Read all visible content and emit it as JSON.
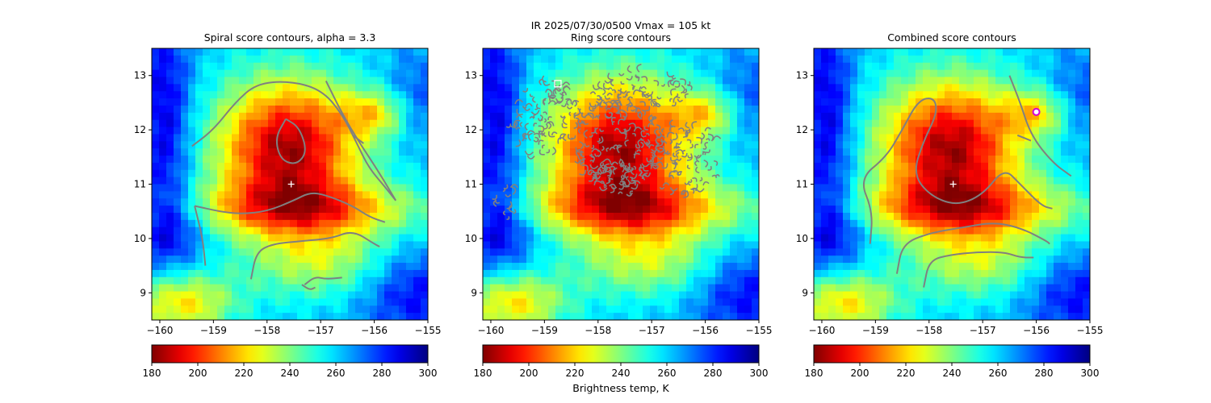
{
  "suptitle": "IR  2025/07/30/0500    Vmax = 105 kt",
  "colorbar_label": "Brightness temp, K",
  "chart_data": [
    {
      "type": "heatmap",
      "title": "Spiral score contours, alpha =  3.3",
      "xlim": [
        -160.15,
        -155.0
      ],
      "ylim": [
        8.5,
        13.5
      ],
      "x_ticks": [
        -160,
        -159,
        -158,
        -157,
        -156,
        -155
      ],
      "x_tick_labels": [
        "−160",
        "−159",
        "−158",
        "−157",
        "−156",
        "−155"
      ],
      "y_ticks": [
        9,
        10,
        11,
        12,
        13
      ],
      "y_tick_labels": [
        "9",
        "10",
        "11",
        "12",
        "13"
      ],
      "center": {
        "lon": -157.55,
        "lat": 11.0
      },
      "contour_color": "#808080",
      "contours": [
        [
          [
            -159.4,
            11.7
          ],
          [
            -159.0,
            12.0
          ],
          [
            -158.6,
            12.5
          ],
          [
            -158.2,
            12.85
          ],
          [
            -157.6,
            12.9
          ],
          [
            -157.0,
            12.75
          ],
          [
            -156.6,
            12.3
          ],
          [
            -156.3,
            11.7
          ],
          [
            -156.1,
            11.3
          ],
          [
            -155.8,
            10.95
          ],
          [
            -155.6,
            10.7
          ]
        ],
        [
          [
            -157.65,
            12.2
          ],
          [
            -157.4,
            12.05
          ],
          [
            -157.25,
            11.6
          ],
          [
            -157.45,
            11.35
          ],
          [
            -157.75,
            11.45
          ],
          [
            -157.85,
            11.85
          ],
          [
            -157.65,
            12.2
          ]
        ],
        [
          [
            -156.9,
            12.9
          ],
          [
            -156.6,
            12.3
          ],
          [
            -156.3,
            11.8
          ],
          [
            -155.9,
            11.2
          ],
          [
            -155.6,
            10.7
          ]
        ],
        [
          [
            -159.35,
            10.6
          ],
          [
            -159.2,
            10.0
          ],
          [
            -159.15,
            9.5
          ]
        ],
        [
          [
            -159.35,
            10.6
          ],
          [
            -158.9,
            10.5
          ],
          [
            -158.5,
            10.45
          ],
          [
            -158.0,
            10.5
          ],
          [
            -157.5,
            10.7
          ],
          [
            -157.2,
            10.85
          ],
          [
            -156.9,
            10.8
          ],
          [
            -156.4,
            10.6
          ],
          [
            -156.1,
            10.4
          ],
          [
            -155.8,
            10.3
          ]
        ],
        [
          [
            -158.3,
            9.25
          ],
          [
            -158.2,
            9.75
          ],
          [
            -157.9,
            9.9
          ],
          [
            -157.4,
            9.95
          ],
          [
            -156.8,
            10.0
          ],
          [
            -156.4,
            10.15
          ],
          [
            -156.0,
            9.9
          ],
          [
            -155.9,
            9.85
          ]
        ],
        [
          [
            -157.3,
            9.15
          ],
          [
            -157.1,
            9.3
          ],
          [
            -156.9,
            9.25
          ],
          [
            -156.6,
            9.28
          ]
        ],
        [
          [
            -157.35,
            9.15
          ],
          [
            -157.2,
            9.05
          ],
          [
            -157.1,
            9.1
          ]
        ],
        [
          [
            -156.4,
            11.9
          ],
          [
            -156.2,
            11.75
          ]
        ]
      ],
      "markers": [
        {
          "lon": -157.55,
          "lat": 11.0,
          "shape": "plus",
          "color": "#ffffff"
        }
      ],
      "colorbar": {
        "range": [
          180,
          300
        ],
        "ticks": [
          180,
          200,
          220,
          240,
          260,
          280,
          300
        ],
        "colormap": "jet_r"
      }
    },
    {
      "type": "heatmap",
      "title": "Ring score contours",
      "xlim": [
        -160.15,
        -155.0
      ],
      "ylim": [
        8.5,
        13.5
      ],
      "x_ticks": [
        -160,
        -159,
        -158,
        -157,
        -156,
        -155
      ],
      "x_tick_labels": [
        "−160",
        "−159",
        "−158",
        "−157",
        "−156",
        "−155"
      ],
      "y_ticks": [
        9,
        10,
        11,
        12,
        13
      ],
      "y_tick_labels": [
        "9",
        "10",
        "11",
        "12",
        "13"
      ],
      "center": {
        "lon": -157.55,
        "lat": 11.0
      },
      "contour_color": "#808080",
      "ring_regions": [
        {
          "lon": -159.0,
          "lat": 12.2,
          "rx": 0.65,
          "ry": 0.75
        },
        {
          "lon": -157.6,
          "lat": 11.8,
          "rx": 0.85,
          "ry": 0.9
        },
        {
          "lon": -157.6,
          "lat": 11.1,
          "rx": 0.55,
          "ry": 0.35
        },
        {
          "lon": -156.4,
          "lat": 11.45,
          "rx": 0.7,
          "ry": 0.65
        },
        {
          "lon": -157.2,
          "lat": 12.75,
          "rx": 1.0,
          "ry": 0.35
        },
        {
          "lon": -159.7,
          "lat": 10.7,
          "rx": 0.22,
          "ry": 0.3
        }
      ],
      "markers": [
        {
          "lon": -158.75,
          "lat": 12.85,
          "shape": "square",
          "color": "#ffffff"
        }
      ],
      "colorbar": {
        "range": [
          180,
          300
        ],
        "ticks": [
          180,
          200,
          220,
          240,
          260,
          280,
          300
        ],
        "colormap": "jet_r"
      }
    },
    {
      "type": "heatmap",
      "title": "Combined score contours",
      "xlim": [
        -160.15,
        -155.0
      ],
      "ylim": [
        8.5,
        13.5
      ],
      "x_ticks": [
        -160,
        -159,
        -158,
        -157,
        -156,
        -155
      ],
      "x_tick_labels": [
        "−160",
        "−159",
        "−158",
        "−157",
        "−156",
        "−155"
      ],
      "y_ticks": [
        9,
        10,
        11,
        12,
        13
      ],
      "y_tick_labels": [
        "9",
        "10",
        "11",
        "12",
        "13"
      ],
      "center": {
        "lon": -157.55,
        "lat": 11.0
      },
      "contour_color": "#808080",
      "contours": [
        [
          [
            -159.1,
            9.9
          ],
          [
            -159.05,
            10.5
          ],
          [
            -159.3,
            11.1
          ],
          [
            -158.8,
            11.5
          ],
          [
            -158.5,
            12.0
          ],
          [
            -158.2,
            12.55
          ],
          [
            -157.9,
            12.6
          ],
          [
            -157.85,
            12.3
          ],
          [
            -158.1,
            11.8
          ],
          [
            -158.3,
            11.2
          ],
          [
            -158.0,
            10.8
          ],
          [
            -157.5,
            10.6
          ],
          [
            -157.0,
            10.8
          ],
          [
            -156.6,
            11.3
          ],
          [
            -156.3,
            11.0
          ],
          [
            -155.9,
            10.6
          ],
          [
            -155.7,
            10.55
          ]
        ],
        [
          [
            -156.5,
            13.0
          ],
          [
            -156.3,
            12.5
          ],
          [
            -156.1,
            11.9
          ],
          [
            -155.7,
            11.4
          ],
          [
            -155.35,
            11.15
          ]
        ],
        [
          [
            -156.35,
            11.9
          ],
          [
            -156.1,
            11.8
          ]
        ],
        [
          [
            -158.6,
            9.35
          ],
          [
            -158.5,
            9.9
          ],
          [
            -158.0,
            10.1
          ],
          [
            -157.4,
            10.2
          ],
          [
            -156.8,
            10.3
          ],
          [
            -156.3,
            10.2
          ],
          [
            -155.8,
            9.95
          ],
          [
            -155.75,
            9.9
          ]
        ],
        [
          [
            -158.1,
            9.1
          ],
          [
            -158.0,
            9.6
          ],
          [
            -157.6,
            9.7
          ],
          [
            -157.1,
            9.75
          ],
          [
            -156.6,
            9.75
          ],
          [
            -156.3,
            9.65
          ],
          [
            -156.05,
            9.65
          ]
        ]
      ],
      "markers": [
        {
          "lon": -157.55,
          "lat": 11.0,
          "shape": "plus",
          "color": "#ffffff"
        },
        {
          "lon": -156.0,
          "lat": 12.33,
          "shape": "ring",
          "color": "#d400d4"
        }
      ],
      "colorbar": {
        "range": [
          180,
          300
        ],
        "ticks": [
          180,
          200,
          220,
          240,
          260,
          280,
          300
        ],
        "colormap": "jet_r"
      }
    }
  ]
}
